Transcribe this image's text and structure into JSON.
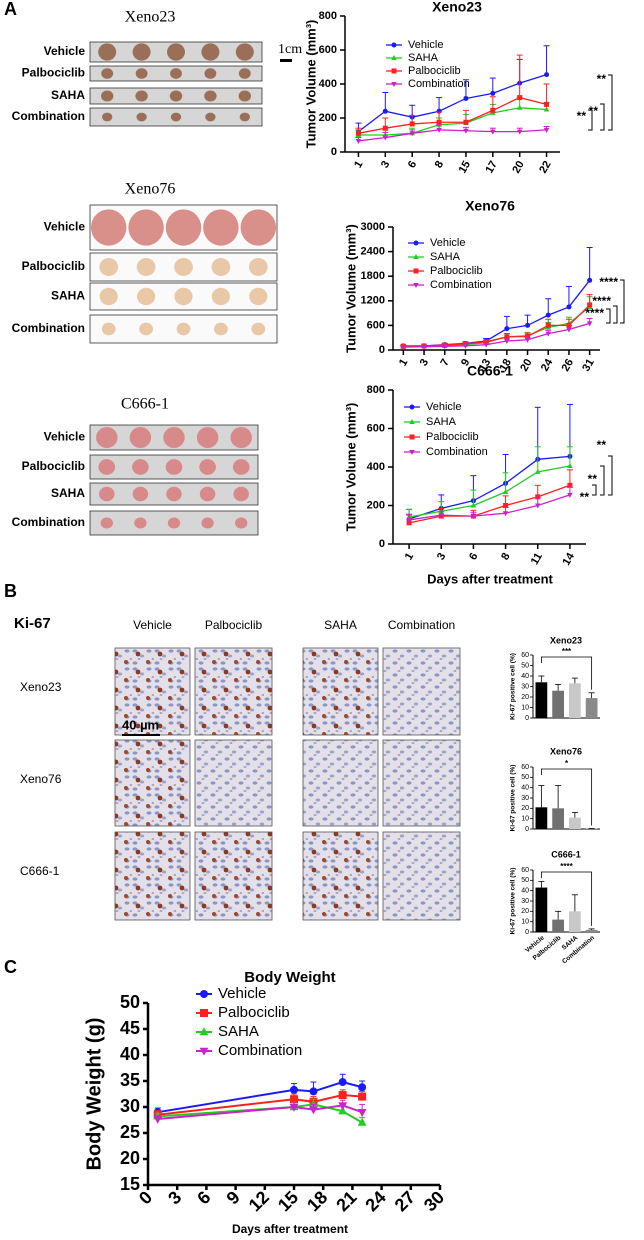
{
  "panels": {
    "labels": [
      "A",
      "B",
      "C"
    ],
    "photos": [
      {
        "title": "Xeno23",
        "groups": [
          "Vehicle",
          "Palbociclib",
          "SAHA",
          "Combination"
        ]
      },
      {
        "title": "Xeno76",
        "groups": [
          "Vehicle",
          "Palbociclib",
          "SAHA",
          "Combination"
        ]
      },
      {
        "title": "C666-1",
        "groups": [
          "Vehicle",
          "Palbociclib",
          "SAHA",
          "Combination"
        ]
      }
    ],
    "scale_bar": "1cm",
    "ihc": {
      "marker": "Ki-67",
      "columns": [
        "Vehicle",
        "Palbociclib",
        "SAHA",
        "Combination"
      ],
      "rows": [
        "Xeno23",
        "Xeno76",
        "C666-1"
      ],
      "scale_bar": "40 µm"
    }
  },
  "chart_data": [
    {
      "type": "line",
      "title": "Xeno23",
      "ylabel": "Tumor Volume (mm³)",
      "categories": [
        "1",
        "3",
        "6",
        "8",
        "15",
        "17",
        "20",
        "22"
      ],
      "ylim": [
        0,
        800
      ],
      "yticks": [
        0,
        200,
        400,
        600,
        800
      ],
      "series": [
        {
          "name": "Vehicle",
          "color": "#1a1aff",
          "marker": "circle",
          "values": [
            120,
            240,
            205,
            240,
            315,
            345,
            405,
            455
          ],
          "errors": [
            50,
            110,
            70,
            80,
            110,
            90,
            140,
            170
          ]
        },
        {
          "name": "SAHA",
          "color": "#22cc22",
          "marker": "triangle",
          "values": [
            100,
            100,
            110,
            160,
            170,
            230,
            260,
            250
          ],
          "errors": [
            30,
            30,
            30,
            40,
            50,
            50,
            60,
            40
          ]
        },
        {
          "name": "Palbociclib",
          "color": "#ff2020",
          "marker": "square",
          "values": [
            110,
            140,
            165,
            175,
            175,
            245,
            320,
            280
          ],
          "errors": [
            30,
            60,
            50,
            60,
            70,
            80,
            250,
            120
          ]
        },
        {
          "name": "Combination",
          "color": "#cc22cc",
          "marker": "triangle-down",
          "values": [
            65,
            85,
            110,
            130,
            125,
            120,
            120,
            130
          ],
          "errors": [
            20,
            30,
            20,
            30,
            20,
            20,
            20,
            20
          ]
        }
      ],
      "annotations": [
        "**",
        "**",
        "**"
      ]
    },
    {
      "type": "line",
      "title": "Xeno76",
      "ylabel": "Tumor Volume (mm³)",
      "categories": [
        "1",
        "3",
        "7",
        "9",
        "13",
        "18",
        "20",
        "24",
        "26",
        "31"
      ],
      "ylim": [
        0,
        3000
      ],
      "yticks": [
        0,
        600,
        1200,
        1800,
        2400,
        3000
      ],
      "series": [
        {
          "name": "Vehicle",
          "color": "#1a1aff",
          "marker": "circle",
          "values": [
            100,
            100,
            130,
            160,
            220,
            520,
            600,
            850,
            1050,
            1700
          ],
          "errors": [
            20,
            20,
            30,
            40,
            60,
            300,
            250,
            400,
            500,
            800
          ]
        },
        {
          "name": "SAHA",
          "color": "#22cc22",
          "marker": "triangle",
          "values": [
            80,
            90,
            100,
            130,
            180,
            320,
            350,
            550,
            650,
            1050
          ],
          "errors": [
            20,
            20,
            20,
            30,
            40,
            80,
            80,
            120,
            150,
            250
          ]
        },
        {
          "name": "Palbociclib",
          "color": "#ff2020",
          "marker": "square",
          "values": [
            90,
            100,
            120,
            150,
            200,
            320,
            330,
            600,
            600,
            1100
          ],
          "errors": [
            20,
            20,
            20,
            30,
            40,
            80,
            80,
            150,
            150,
            250
          ]
        },
        {
          "name": "Combination",
          "color": "#cc22cc",
          "marker": "triangle-down",
          "values": [
            70,
            80,
            90,
            100,
            130,
            220,
            250,
            400,
            500,
            650
          ],
          "errors": [
            10,
            10,
            20,
            20,
            30,
            50,
            60,
            80,
            100,
            120
          ]
        }
      ],
      "annotations": [
        "****",
        "****",
        "****"
      ]
    },
    {
      "type": "line",
      "title": "C666-1",
      "ylabel": "Tumor Volume (mm³)",
      "xlabel": "Days after treatment",
      "categories": [
        "1",
        "3",
        "6",
        "8",
        "11",
        "14"
      ],
      "ylim": [
        0,
        800
      ],
      "yticks": [
        0,
        200,
        400,
        600,
        800
      ],
      "series": [
        {
          "name": "Vehicle",
          "color": "#1a1aff",
          "marker": "circle",
          "values": [
            130,
            185,
            225,
            315,
            440,
            455
          ],
          "errors": [
            50,
            70,
            130,
            150,
            270,
            270
          ]
        },
        {
          "name": "SAHA",
          "color": "#22cc22",
          "marker": "triangle",
          "values": [
            140,
            170,
            200,
            270,
            375,
            405
          ],
          "errors": [
            40,
            50,
            80,
            100,
            130,
            100
          ]
        },
        {
          "name": "Palbociclib",
          "color": "#ff2020",
          "marker": "square",
          "values": [
            110,
            145,
            145,
            200,
            245,
            305
          ],
          "errors": [
            40,
            40,
            30,
            50,
            60,
            80
          ]
        },
        {
          "name": "Combination",
          "color": "#cc22cc",
          "marker": "triangle-down",
          "values": [
            125,
            150,
            145,
            160,
            200,
            255
          ],
          "errors": [
            30,
            20,
            20,
            30,
            40,
            40
          ]
        }
      ],
      "annotations": [
        "**",
        "**",
        "**"
      ]
    },
    {
      "type": "bar",
      "title": "Xeno23",
      "ylabel": "Ki-67 positive cell (%)",
      "values": [
        34,
        26,
        33,
        19
      ],
      "errors": [
        6,
        6,
        5,
        5
      ],
      "colors": [
        "#000000",
        "#707070",
        "#c8c8c8",
        "#8a8a8a"
      ],
      "ylim": [
        0,
        60
      ],
      "yticks": [
        0,
        10,
        20,
        30,
        40,
        50,
        60
      ],
      "annotations": [
        "***"
      ]
    },
    {
      "type": "bar",
      "title": "Xeno76",
      "ylabel": "Ki-67 positive cell (%)",
      "values": [
        21,
        20,
        11,
        0.5
      ],
      "errors": [
        21,
        22,
        5,
        0
      ],
      "colors": [
        "#000000",
        "#707070",
        "#c8c8c8",
        "#8a8a8a"
      ],
      "ylim": [
        0,
        60
      ],
      "yticks": [
        0,
        10,
        20,
        30,
        40,
        50,
        60
      ],
      "annotations": [
        "*"
      ]
    },
    {
      "type": "bar",
      "title": "C666-1",
      "ylabel": "Ki-67 positive cell (%)",
      "categories": [
        "Vehicle",
        "Palbociclib",
        "SAHA",
        "Combination"
      ],
      "values": [
        43,
        12,
        20,
        2
      ],
      "errors": [
        6,
        8,
        16,
        1
      ],
      "colors": [
        "#000000",
        "#707070",
        "#c8c8c8",
        "#8a8a8a"
      ],
      "ylim": [
        0,
        60
      ],
      "yticks": [
        0,
        10,
        20,
        30,
        40,
        50,
        60
      ],
      "annotations": [
        "****"
      ]
    },
    {
      "type": "line",
      "title": "Body Weight",
      "xlabel": "Days after treatment",
      "ylabel": "Body Weight (g)",
      "x": [
        1,
        15,
        17,
        20,
        22
      ],
      "xlim": [
        0,
        30
      ],
      "xticks": [
        0,
        3,
        6,
        9,
        12,
        15,
        18,
        21,
        24,
        27,
        30
      ],
      "ylim": [
        15,
        50
      ],
      "yticks": [
        15,
        20,
        25,
        30,
        35,
        40,
        45,
        50
      ],
      "series": [
        {
          "name": "Vehicle",
          "color": "#1a1aff",
          "marker": "circle",
          "values": [
            29,
            33.3,
            33,
            34.8,
            33.8
          ],
          "errors": [
            0.8,
            1.2,
            1.8,
            1.5,
            1.2
          ]
        },
        {
          "name": "Palbociclib",
          "color": "#ff2020",
          "marker": "square",
          "values": [
            28.5,
            31.5,
            31,
            32.3,
            32
          ],
          "errors": [
            0.8,
            1,
            1,
            1,
            1
          ]
        },
        {
          "name": "SAHA",
          "color": "#22cc22",
          "marker": "triangle",
          "values": [
            28.2,
            30,
            30.5,
            29.2,
            27
          ],
          "errors": [
            0.6,
            1,
            1,
            1.2,
            1
          ]
        },
        {
          "name": "Combination",
          "color": "#cc22cc",
          "marker": "triangle-down",
          "values": [
            27.7,
            30,
            29.5,
            30.3,
            29
          ],
          "errors": [
            0.6,
            1,
            1,
            1,
            1.5
          ]
        }
      ]
    }
  ]
}
